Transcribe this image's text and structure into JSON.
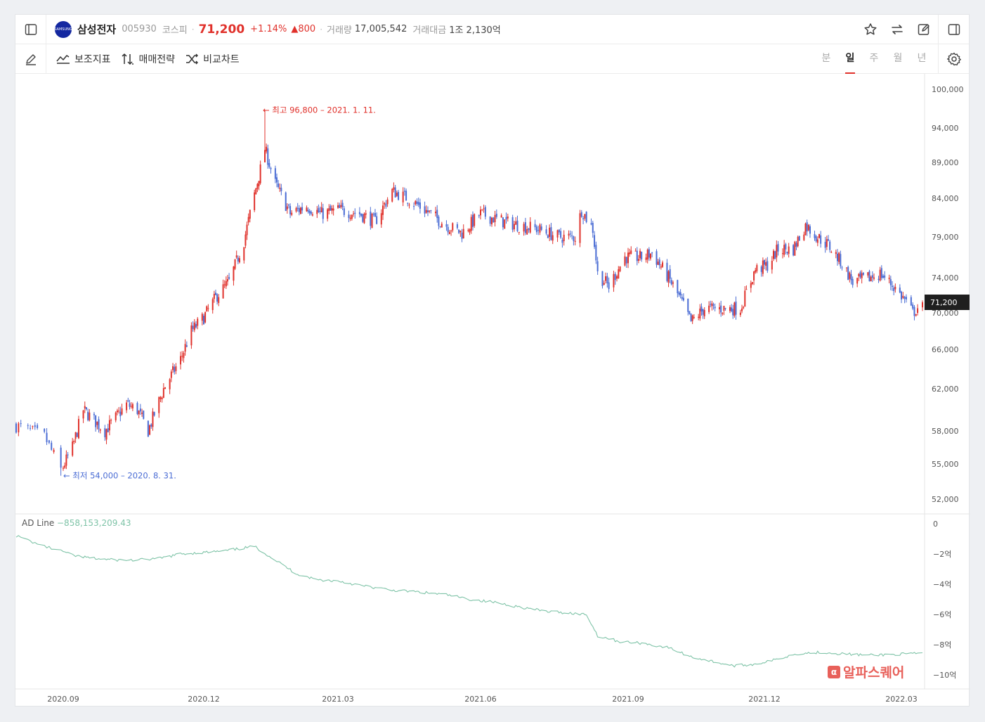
{
  "header": {
    "name": "삼성전자",
    "code": "005930",
    "market": "코스피",
    "price": "71,200",
    "change_pct": "+1.14%",
    "change": "▲800",
    "volume_label": "거래량",
    "volume": "17,005,542",
    "amount_label": "거래대금",
    "amount": "1조 2,130억",
    "logo_text": "SAMSUNG"
  },
  "toolbar": {
    "indicators": "보조지표",
    "strategy": "매매전략",
    "compare": "비교차트",
    "tabs": [
      "분",
      "일",
      "주",
      "월",
      "년"
    ],
    "active_tab": "일"
  },
  "colors": {
    "up": "#e0312b",
    "down": "#4a6cd4",
    "ad_line": "#7ec3a7",
    "brand": "#1428a0"
  },
  "chart_data": [
    {
      "type": "candlestick",
      "x_labels": [
        "2020.09",
        "2020.12",
        "2021.03",
        "2021.06",
        "2021.09",
        "2021.12",
        "2022.03"
      ],
      "y_ticks": [
        "100,000",
        "94,000",
        "89,000",
        "84,000",
        "79,000",
        "74,000",
        "70,000",
        "66,000",
        "62,000",
        "58,000",
        "55,000",
        "52,000"
      ],
      "y_tick_values": [
        100000,
        94000,
        89000,
        84000,
        79000,
        74000,
        70000,
        66000,
        62000,
        58000,
        55000,
        52000
      ],
      "current_price_label": "71,200",
      "current_price": 71200,
      "annotations": {
        "high": {
          "text": "← 최고 96,800 – 2021. 1. 11.",
          "value": 96800
        },
        "low": {
          "text": "← 최저 54,000 – 2020. 8. 31.",
          "value": 54000
        }
      },
      "close_path": [
        [
          "2020-08-12",
          58500
        ],
        [
          "2020-08-24",
          57500
        ],
        [
          "2020-08-31",
          54500
        ],
        [
          "2020-09-07",
          56500
        ],
        [
          "2020-09-14",
          60000
        ],
        [
          "2020-09-21",
          59000
        ],
        [
          "2020-09-28",
          58000
        ],
        [
          "2020-10-12",
          60500
        ],
        [
          "2020-10-19",
          60000
        ],
        [
          "2020-10-26",
          58000
        ],
        [
          "2020-11-05",
          62000
        ],
        [
          "2020-11-16",
          65000
        ],
        [
          "2020-11-23",
          68000
        ],
        [
          "2020-12-01",
          69500
        ],
        [
          "2020-12-10",
          72000
        ],
        [
          "2020-12-18",
          73500
        ],
        [
          "2020-12-28",
          78500
        ],
        [
          "2021-01-08",
          88000
        ],
        [
          "2021-01-11",
          91000
        ],
        [
          "2021-01-18",
          86000
        ],
        [
          "2021-01-28",
          82000
        ],
        [
          "2021-02-08",
          83000
        ],
        [
          "2021-02-18",
          82000
        ],
        [
          "2021-03-02",
          82500
        ],
        [
          "2021-03-15",
          82000
        ],
        [
          "2021-03-25",
          81000
        ],
        [
          "2021-04-05",
          85000
        ],
        [
          "2021-04-15",
          84000
        ],
        [
          "2021-04-26",
          82500
        ],
        [
          "2021-05-10",
          80500
        ],
        [
          "2021-05-20",
          79500
        ],
        [
          "2021-06-01",
          82000
        ],
        [
          "2021-06-15",
          81000
        ],
        [
          "2021-06-25",
          80500
        ],
        [
          "2021-07-07",
          80000
        ],
        [
          "2021-07-20",
          79000
        ],
        [
          "2021-07-30",
          79000
        ],
        [
          "2021-08-03",
          82500
        ],
        [
          "2021-08-10",
          80000
        ],
        [
          "2021-08-13",
          74500
        ],
        [
          "2021-08-20",
          73000
        ],
        [
          "2021-08-30",
          76500
        ],
        [
          "2021-09-10",
          76500
        ],
        [
          "2021-09-17",
          77000
        ],
        [
          "2021-09-28",
          74000
        ],
        [
          "2021-10-06",
          71500
        ],
        [
          "2021-10-13",
          69000
        ],
        [
          "2021-10-22",
          70500
        ],
        [
          "2021-11-05",
          70500
        ],
        [
          "2021-11-15",
          70500
        ],
        [
          "2021-11-25",
          75000
        ],
        [
          "2021-12-03",
          75500
        ],
        [
          "2021-12-10",
          77500
        ],
        [
          "2021-12-20",
          77500
        ],
        [
          "2021-12-28",
          80500
        ],
        [
          "2022-01-05",
          79000
        ],
        [
          "2022-01-12",
          78000
        ],
        [
          "2022-01-20",
          76000
        ],
        [
          "2022-01-28",
          73500
        ],
        [
          "2022-02-08",
          74000
        ],
        [
          "2022-02-15",
          74500
        ],
        [
          "2022-02-24",
          73000
        ],
        [
          "2022-03-03",
          71500
        ],
        [
          "2022-03-08",
          70000
        ],
        [
          "2022-03-14",
          71200
        ]
      ]
    },
    {
      "type": "line",
      "title": "AD Line",
      "value_label": "−858,153,209.43",
      "y_ticks": [
        "0",
        "−2억",
        "−4억",
        "−6억",
        "−8억",
        "−10억"
      ],
      "y_tick_values": [
        0,
        -200000000,
        -400000000,
        -600000000,
        -800000000,
        -1000000000
      ],
      "series": [
        {
          "values": [
            [
              "2020-08-12",
              -80000000
            ],
            [
              "2020-08-24",
              -150000000
            ],
            [
              "2020-09-07",
              -210000000
            ],
            [
              "2020-09-21",
              -230000000
            ],
            [
              "2020-10-05",
              -240000000
            ],
            [
              "2020-10-19",
              -240000000
            ],
            [
              "2020-11-02",
              -230000000
            ],
            [
              "2020-11-16",
              -200000000
            ],
            [
              "2020-12-01",
              -190000000
            ],
            [
              "2020-12-15",
              -180000000
            ],
            [
              "2021-01-04",
              -150000000
            ],
            [
              "2021-01-18",
              -240000000
            ],
            [
              "2021-02-01",
              -330000000
            ],
            [
              "2021-02-15",
              -370000000
            ],
            [
              "2021-03-02",
              -380000000
            ],
            [
              "2021-03-16",
              -410000000
            ],
            [
              "2021-04-05",
              -440000000
            ],
            [
              "2021-04-20",
              -450000000
            ],
            [
              "2021-05-10",
              -470000000
            ],
            [
              "2021-05-25",
              -500000000
            ],
            [
              "2021-06-10",
              -520000000
            ],
            [
              "2021-06-25",
              -550000000
            ],
            [
              "2021-07-12",
              -580000000
            ],
            [
              "2021-07-26",
              -590000000
            ],
            [
              "2021-08-06",
              -600000000
            ],
            [
              "2021-08-13",
              -740000000
            ],
            [
              "2021-08-27",
              -780000000
            ],
            [
              "2021-09-10",
              -790000000
            ],
            [
              "2021-09-28",
              -820000000
            ],
            [
              "2021-10-13",
              -880000000
            ],
            [
              "2021-10-27",
              -910000000
            ],
            [
              "2021-11-10",
              -940000000
            ],
            [
              "2021-11-24",
              -930000000
            ],
            [
              "2021-12-08",
              -900000000
            ],
            [
              "2021-12-22",
              -860000000
            ],
            [
              "2022-01-07",
              -850000000
            ],
            [
              "2022-01-21",
              -860000000
            ],
            [
              "2022-02-07",
              -870000000
            ],
            [
              "2022-02-22",
              -865000000
            ],
            [
              "2022-03-14",
              -858153209
            ]
          ]
        }
      ]
    }
  ],
  "watermark": "알파스퀘어",
  "watermark_logo": "α"
}
